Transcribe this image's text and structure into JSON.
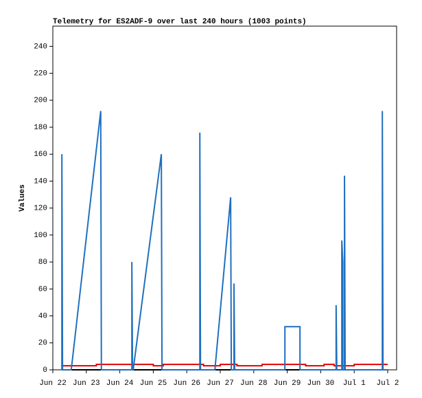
{
  "chart_data": {
    "type": "line",
    "title": "Telemetry for ES2ADF-9 over last 240 hours (1003 points)",
    "y_label": "Values",
    "xlim": [
      0,
      10
    ],
    "xticks": [
      {
        "value": 0,
        "label": "Jun 22"
      },
      {
        "value": 1,
        "label": "Jun 23"
      },
      {
        "value": 2,
        "label": "Jun 24"
      },
      {
        "value": 3,
        "label": "Jun 25"
      },
      {
        "value": 4,
        "label": "Jun 26"
      },
      {
        "value": 5,
        "label": "Jun 27"
      },
      {
        "value": 6,
        "label": "Jun 28"
      },
      {
        "value": 7,
        "label": "Jun 29"
      },
      {
        "value": 8,
        "label": "Jun 30"
      },
      {
        "value": 9,
        "label": "Jul 1"
      },
      {
        "value": 10,
        "label": "Jul 2"
      }
    ],
    "ylim": [
      0,
      255
    ],
    "yticks": [
      0,
      20,
      40,
      60,
      80,
      100,
      120,
      140,
      160,
      180,
      200,
      220,
      240
    ],
    "series": [
      {
        "color": "#000000",
        "x": [
          0.27,
          10
        ],
        "values": [
          0,
          0
        ]
      },
      {
        "color": "#e00000",
        "x": [
          0.25,
          1.3,
          1.3,
          3.0,
          3.0,
          3.3,
          3.3,
          4.5,
          4.5,
          5.0,
          5.0,
          5.5,
          5.5,
          6.25,
          6.25,
          7.55,
          7.55,
          8.1,
          8.1,
          8.4,
          8.4,
          9.0,
          9.0,
          10
        ],
        "values": [
          3,
          3,
          4,
          4,
          3,
          3,
          4,
          4,
          3,
          3,
          4,
          4,
          3,
          3,
          4,
          4,
          3,
          3,
          4,
          4,
          3,
          3,
          4,
          4
        ]
      },
      {
        "color": "#1f6fbf",
        "x": [
          0.27,
          0.27,
          0.29,
          0.55,
          1.43,
          1.45,
          2.36,
          2.36,
          2.38,
          2.4,
          3.24,
          3.26,
          4.39,
          4.39,
          4.41,
          4.84,
          5.31,
          5.33,
          5.41,
          5.41,
          5.43,
          6.93,
          6.93,
          7.38,
          7.38,
          8.46,
          8.46,
          8.48,
          8.63,
          8.63,
          8.66,
          8.66,
          8.71,
          8.71,
          8.73,
          9.84,
          9.84,
          9.86,
          10
        ],
        "values": [
          0,
          160,
          0,
          0,
          192,
          0,
          0,
          80,
          0,
          0,
          160,
          0,
          0,
          176,
          0,
          0,
          128,
          0,
          0,
          64,
          0,
          0,
          32,
          32,
          0,
          0,
          48,
          0,
          0,
          96,
          80,
          0,
          0,
          144,
          0,
          0,
          192,
          0,
          0
        ]
      }
    ]
  }
}
